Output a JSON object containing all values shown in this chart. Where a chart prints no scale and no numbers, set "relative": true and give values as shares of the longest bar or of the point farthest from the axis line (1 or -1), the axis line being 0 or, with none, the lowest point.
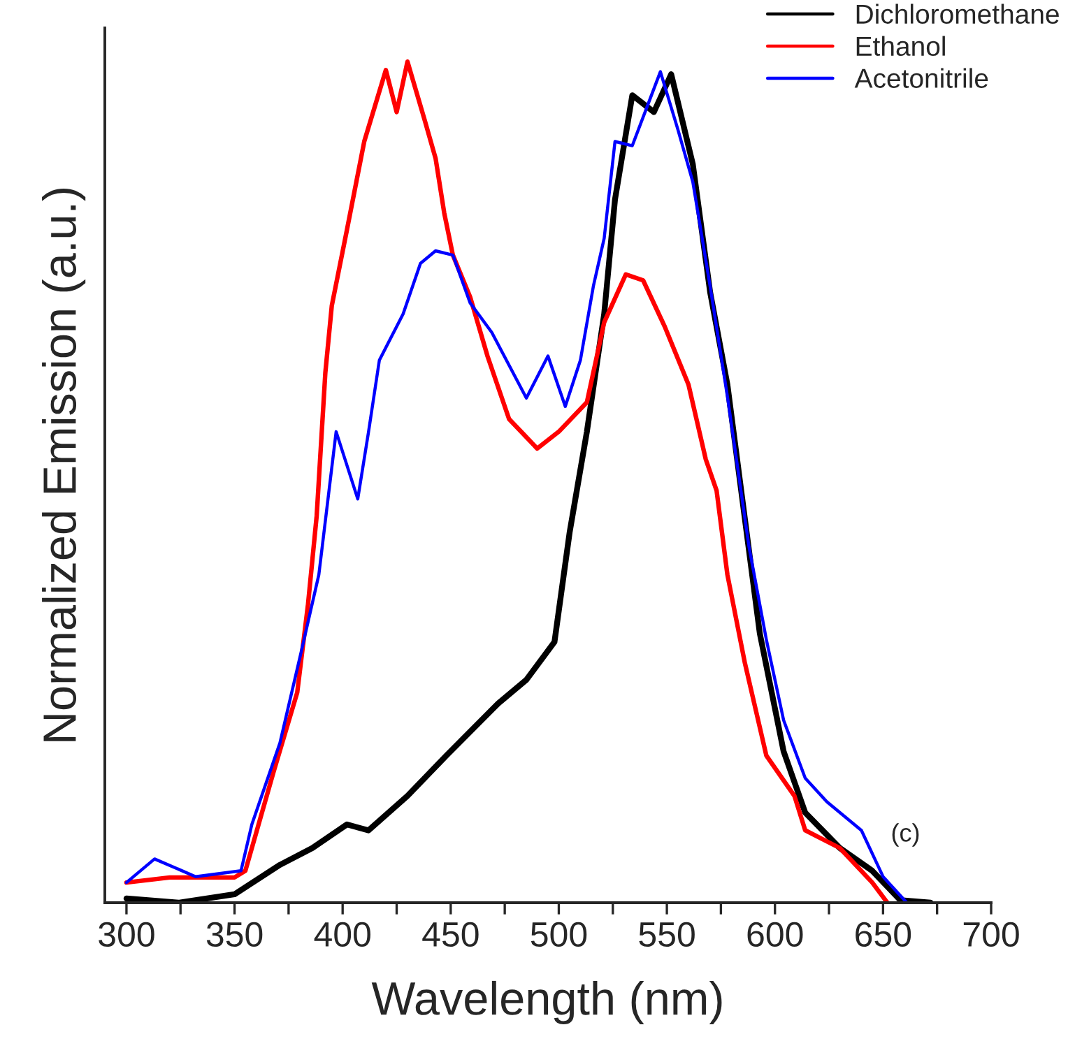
{
  "chart_data": {
    "type": "line",
    "relative": true,
    "xlabel": "Wavelength (nm)",
    "ylabel": "Normalized Emission (a.u.)",
    "xlim": [
      290,
      700
    ],
    "xticks": [
      300,
      {
        "value": 325,
        "label": null
      },
      350,
      {
        "value": 375,
        "label": null
      },
      400,
      {
        "value": 425,
        "label": null
      },
      450,
      {
        "value": 475,
        "label": null
      },
      500,
      {
        "value": 525,
        "label": null
      },
      550,
      {
        "value": 575,
        "label": null
      },
      600,
      {
        "value": 625,
        "label": null
      },
      650,
      {
        "value": 675,
        "label": null
      },
      700
    ],
    "tick_labels": "x",
    "grid": false,
    "legend": "top right",
    "marker": "none",
    "line_style": "solid",
    "annotations": [
      "(c)"
    ],
    "series": [
      {
        "name": "Dichloromethane",
        "color": "#000000",
        "x": [
          300,
          324,
          350,
          371,
          386,
          402,
          412,
          430,
          448,
          472,
          485,
          498,
          505,
          513,
          521,
          526,
          534,
          544,
          552,
          562,
          570,
          578,
          586,
          593,
          604,
          614,
          630,
          645,
          658,
          672
        ],
        "values": [
          0.005,
          0.0,
          0.01,
          0.045,
          0.065,
          0.093,
          0.086,
          0.127,
          0.175,
          0.237,
          0.265,
          0.31,
          0.44,
          0.56,
          0.7,
          0.836,
          0.96,
          0.94,
          0.985,
          0.878,
          0.726,
          0.616,
          0.458,
          0.32,
          0.18,
          0.107,
          0.065,
          0.038,
          0.003,
          0.0
        ]
      },
      {
        "name": "Ethanol",
        "color": "#ff0000",
        "x": [
          300,
          320,
          350,
          355,
          368,
          379,
          384,
          388,
          392,
          395,
          402,
          410,
          420,
          425,
          430,
          438,
          443,
          447,
          451,
          459,
          467,
          477,
          490,
          500,
          513,
          521,
          531,
          539,
          549,
          560,
          568,
          573,
          578,
          586,
          596,
          609,
          614,
          630,
          645,
          652
        ],
        "values": [
          0.024,
          0.03,
          0.03,
          0.038,
          0.155,
          0.25,
          0.355,
          0.46,
          0.63,
          0.71,
          0.8,
          0.905,
          0.99,
          0.94,
          1.0,
          0.93,
          0.885,
          0.82,
          0.77,
          0.72,
          0.65,
          0.575,
          0.54,
          0.56,
          0.595,
          0.69,
          0.747,
          0.74,
          0.685,
          0.616,
          0.527,
          0.49,
          0.39,
          0.286,
          0.175,
          0.127,
          0.086,
          0.065,
          0.024,
          0.0
        ]
      },
      {
        "name": "Acetonitrile",
        "color": "#0000ff",
        "x": [
          300,
          313,
          332,
          353,
          358,
          371,
          381,
          389,
          397,
          407,
          412,
          417,
          428,
          436,
          443,
          451,
          459,
          469,
          485,
          495,
          503,
          510,
          516,
          521,
          526,
          534,
          547,
          555,
          562,
          570,
          578,
          588,
          596,
          604,
          614,
          624,
          640,
          650,
          661
        ],
        "values": [
          0.024,
          0.052,
          0.031,
          0.038,
          0.093,
          0.19,
          0.3,
          0.39,
          0.56,
          0.48,
          0.56,
          0.645,
          0.7,
          0.76,
          0.775,
          0.77,
          0.713,
          0.678,
          0.6,
          0.65,
          0.59,
          0.645,
          0.733,
          0.79,
          0.905,
          0.9,
          0.988,
          0.92,
          0.857,
          0.733,
          0.602,
          0.423,
          0.313,
          0.217,
          0.148,
          0.12,
          0.086,
          0.031,
          0.0
        ]
      }
    ]
  }
}
